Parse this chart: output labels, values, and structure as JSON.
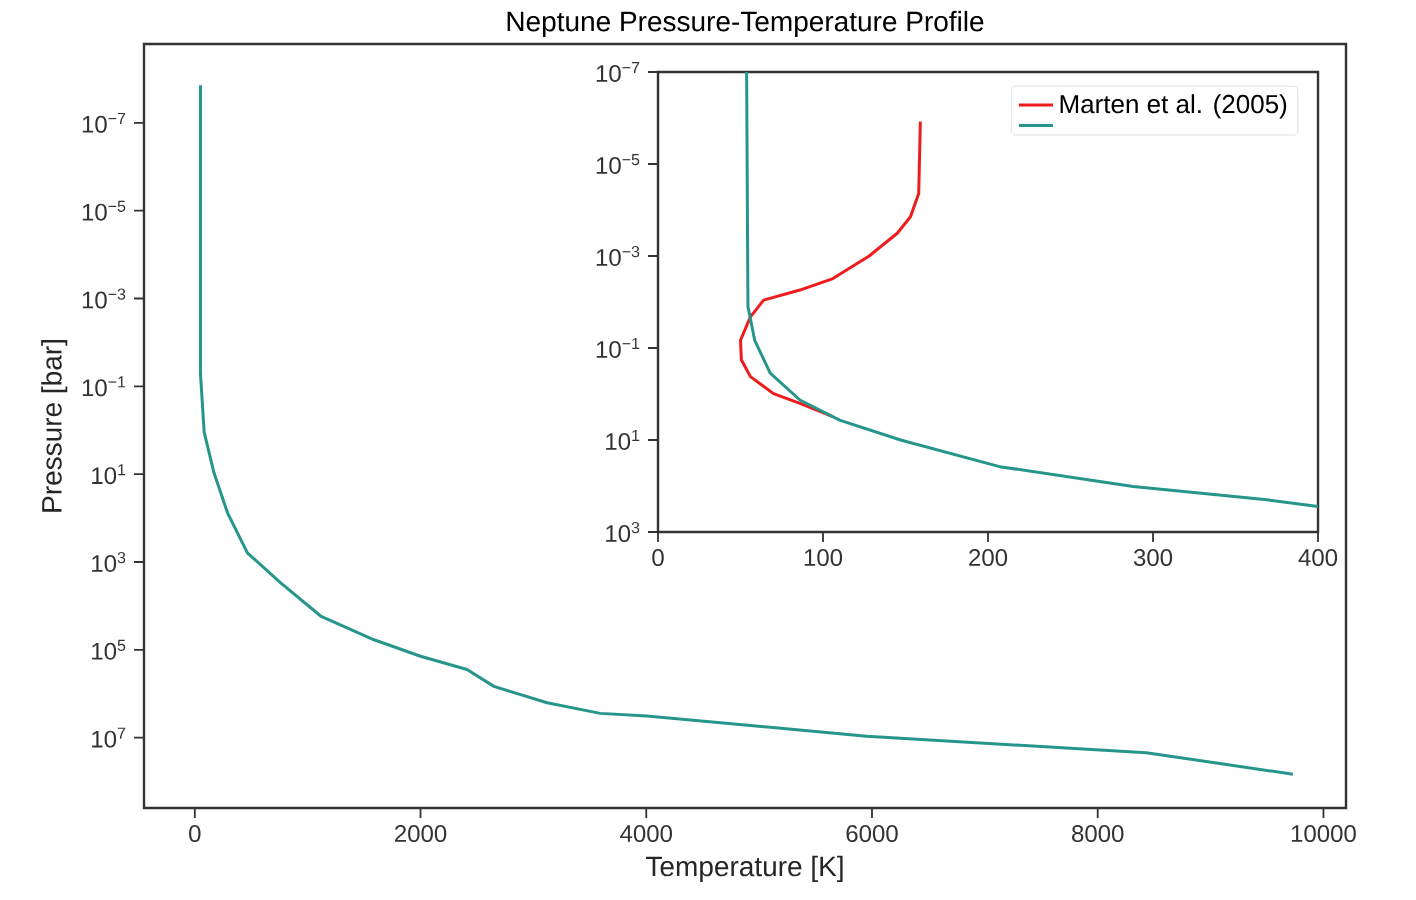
{
  "chart_data": [
    {
      "type": "line",
      "title": "Neptune Pressure-Temperature Profile",
      "xlabel": "Temperature [K]",
      "ylabel": "Pressure [bar]",
      "log": "y",
      "xlim": [
        -450,
        10200
      ],
      "ylim": [
        400000000,
        1.6e-09
      ],
      "xticks": [
        0,
        2000,
        4000,
        6000,
        8000,
        10000
      ],
      "yticks": [
        {
          "value": 1e-07,
          "label": "10$^{−7}$"
        },
        {
          "value": 1e-05,
          "label": "10$^{−5}$"
        },
        {
          "value": 0.001,
          "label": "10$^{−3}$"
        },
        {
          "value": 0.1,
          "label": "10$^{−1}$"
        },
        {
          "value": 10,
          "label": "10$^{1}$"
        },
        {
          "value": 1000,
          "label": "10$^{3}$"
        },
        {
          "value": 100000,
          "label": "10$^{5}$"
        },
        {
          "value": 10000000,
          "label": "10$^{7}$"
        }
      ],
      "series": [
        {
          "color": "#26958c",
          "x": [
            50,
            50,
            83,
            170,
            290,
            466,
            761,
            1115,
            1588,
            2000,
            2412,
            2650,
            3121,
            3593,
            4005,
            5953,
            8430,
            9729
          ],
          "values": [
            1.4e-08,
            0.05,
            1.1,
            9.3,
            76,
            620,
            3000,
            17000,
            59000,
            140000,
            280000,
            680000,
            1600000,
            2800000,
            3200000,
            9300000,
            22000000,
            68000000
          ]
        }
      ]
    },
    {
      "type": "line",
      "legend": "top right",
      "xlim": [
        0,
        400
      ],
      "ylim": [
        1000,
        1e-07
      ],
      "xticks": [
        0,
        100,
        200,
        300,
        400
      ],
      "yticks": [
        {
          "value": 1e-07,
          "label": "10$^{−7}$"
        },
        {
          "value": 1e-05,
          "label": "10$^{−5}$"
        },
        {
          "value": 0.001,
          "label": "10$^{−3}$"
        },
        {
          "value": 0.1,
          "label": "10$^{−1}$"
        },
        {
          "value": 10,
          "label": "10$^{1}$"
        },
        {
          "value": 1000,
          "label": "10$^{3}$"
        }
      ],
      "log": "y",
      "series": [
        {
          "name": "Marten et al. (2005)",
          "color": "#ee1c1c",
          "x": [
            159,
            158,
            153,
            145,
            128,
            106,
            86,
            64,
            56,
            50,
            50.5,
            56,
            70,
            86,
            106
          ],
          "values": [
            1.2e-06,
            4.4e-05,
            0.00014,
            0.00032,
            0.001,
            0.0031,
            0.0055,
            0.0091,
            0.021,
            0.068,
            0.18,
            0.42,
            0.98,
            1.6,
            3.1
          ]
        },
        {
          "color": "#26958c",
          "x": [
            53.7,
            54.5,
            58.6,
            68,
            86,
            110,
            147,
            207,
            288,
            369,
            400
          ],
          "values": [
            1e-07,
            0.0126,
            0.068,
            0.35,
            1.35,
            3.7,
            10,
            38,
            102,
            200,
            280
          ]
        }
      ]
    }
  ]
}
